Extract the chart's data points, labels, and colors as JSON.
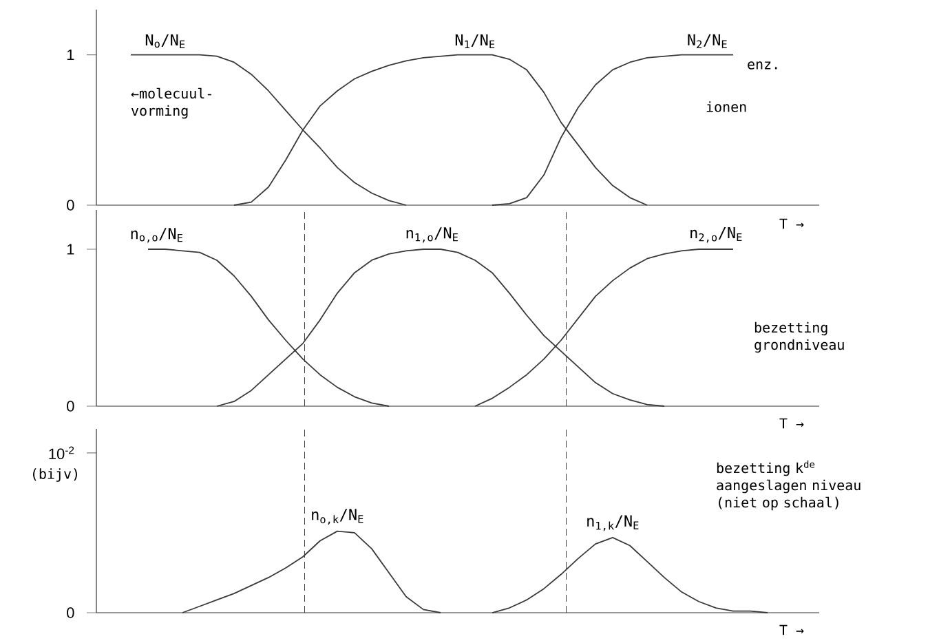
{
  "chart_data": [
    {
      "type": "line",
      "categories": [
        null,
        null,
        null,
        null,
        null,
        null,
        null,
        null,
        null,
        null,
        null,
        null,
        null,
        null,
        null,
        null,
        null,
        null,
        null,
        null,
        null,
        null,
        null,
        null,
        null,
        null,
        null,
        null,
        null,
        null,
        null,
        null,
        null,
        null,
        null,
        null,
        null,
        null,
        null,
        null,
        null,
        null,
        null
      ],
      "ylim": [
        0,
        1.3
      ],
      "yticks": [
        0,
        1
      ],
      "tick_labels": "y",
      "xlabel": "T →",
      "series": [
        {
          "name": "N$_{o}$/N$_{E}$",
          "color": "#3a3a3a",
          "values": [
            null,
            null,
            1,
            1,
            1,
            1,
            1,
            0.99,
            0.95,
            0.87,
            0.76,
            0.63,
            0.5,
            0.38,
            0.25,
            0.15,
            0.08,
            0.03,
            0,
            null,
            null,
            null,
            null,
            null,
            null,
            null,
            null,
            null,
            null,
            null,
            null,
            null,
            null,
            null,
            null,
            null,
            null,
            null,
            null,
            null,
            null,
            null,
            null
          ]
        },
        {
          "name": "N$_{1}$/N$_{E}$",
          "color": "#3a3a3a",
          "values": [
            null,
            null,
            null,
            null,
            null,
            null,
            null,
            null,
            0,
            0.02,
            0.12,
            0.3,
            0.5,
            0.66,
            0.76,
            0.84,
            0.89,
            0.93,
            0.96,
            0.98,
            0.99,
            1,
            1,
            1,
            0.97,
            0.9,
            0.75,
            0.55,
            0.4,
            0.25,
            0.13,
            0.05,
            0,
            null,
            null,
            null,
            null,
            null,
            null,
            null,
            null,
            null,
            null
          ]
        },
        {
          "name": "N$_{2}$/N$_{E}$",
          "color": "#3a3a3a",
          "values": [
            null,
            null,
            null,
            null,
            null,
            null,
            null,
            null,
            null,
            null,
            null,
            null,
            null,
            null,
            null,
            null,
            null,
            null,
            null,
            null,
            null,
            null,
            null,
            0,
            0.01,
            0.05,
            0.2,
            0.45,
            0.65,
            0.8,
            0.9,
            0.95,
            0.98,
            0.99,
            1,
            1,
            1,
            1,
            null,
            null,
            null,
            null,
            null
          ]
        }
      ],
      "annotations": [
        "enz.",
        "←molecuul-vorming",
        "ionen"
      ]
    },
    {
      "type": "line",
      "categories": [
        null,
        null,
        null,
        null,
        null,
        null,
        null,
        null,
        null,
        null,
        null,
        null,
        null,
        null,
        null,
        null,
        null,
        null,
        null,
        null,
        null,
        null,
        null,
        null,
        null,
        null,
        null,
        null,
        null,
        null,
        null,
        null,
        null,
        null,
        null,
        null,
        null,
        null,
        null,
        null,
        null,
        null,
        null
      ],
      "ylim": [
        0,
        1.25
      ],
      "yticks": [
        0,
        1
      ],
      "tick_labels": "y",
      "xlabel": "T →",
      "series": [
        {
          "name": "n$_{o,o}$/N$_{E}$",
          "color": "#3a3a3a",
          "values": [
            null,
            null,
            null,
            1,
            1,
            0.99,
            0.98,
            0.93,
            0.83,
            0.7,
            0.55,
            0.42,
            0.3,
            0.2,
            0.12,
            0.06,
            0.02,
            0,
            null,
            null,
            null,
            null,
            null,
            null,
            null,
            null,
            null,
            null,
            null,
            null,
            null,
            null,
            null,
            null,
            null,
            null,
            null,
            null,
            null,
            null,
            null,
            null,
            null
          ]
        },
        {
          "name": "n$_{1,o}$/N$_{E}$",
          "color": "#3a3a3a",
          "values": [
            null,
            null,
            null,
            null,
            null,
            null,
            null,
            0,
            0.03,
            0.1,
            0.2,
            0.3,
            0.4,
            0.55,
            0.72,
            0.85,
            0.93,
            0.97,
            0.99,
            1,
            1,
            0.98,
            0.93,
            0.85,
            0.72,
            0.58,
            0.45,
            0.35,
            0.25,
            0.15,
            0.08,
            0.04,
            0.01,
            0,
            null,
            null,
            null,
            null,
            null,
            null,
            null,
            null,
            null
          ]
        },
        {
          "name": "n$_{2,o}$/N$_{E}$",
          "color": "#3a3a3a",
          "values": [
            null,
            null,
            null,
            null,
            null,
            null,
            null,
            null,
            null,
            null,
            null,
            null,
            null,
            null,
            null,
            null,
            null,
            null,
            null,
            null,
            null,
            null,
            0,
            0.05,
            0.12,
            0.2,
            0.3,
            0.42,
            0.56,
            0.7,
            0.8,
            0.88,
            0.94,
            0.97,
            0.99,
            1,
            1,
            1,
            null,
            null,
            null,
            null,
            null
          ]
        }
      ],
      "annotations": [
        "bezetting grondniveau"
      ]
    },
    {
      "type": "line",
      "categories": [
        null,
        null,
        null,
        null,
        null,
        null,
        null,
        null,
        null,
        null,
        null,
        null,
        null,
        null,
        null,
        null,
        null,
        null,
        null,
        null,
        null,
        null,
        null,
        null,
        null,
        null,
        null,
        null,
        null,
        null,
        null,
        null,
        null,
        null,
        null,
        null,
        null,
        null,
        null,
        null,
        null,
        null,
        null
      ],
      "ylim": [
        0,
        0.0115
      ],
      "yticks": [
        0,
        {
          "value": 0.01,
          "label": "10$^{-2}$"
        }
      ],
      "tick_labels": "y",
      "xlabel": "T →",
      "ylabel": "(bijv)",
      "series": [
        {
          "name": "n$_{o,k}$/N$_{E}$",
          "color": "#3a3a3a",
          "values": [
            null,
            null,
            null,
            null,
            null,
            0,
            0.0004,
            0.0008,
            0.0012,
            0.0017,
            0.0022,
            0.0028,
            0.0035,
            0.0045,
            0.0051,
            0.005,
            0.004,
            0.0025,
            0.001,
            0.0002,
            0,
            null,
            null,
            null,
            null,
            null,
            null,
            null,
            null,
            null,
            null,
            null,
            null,
            null,
            null,
            null,
            null,
            null,
            null,
            null,
            null,
            null,
            null
          ]
        },
        {
          "name": "n$_{1,k}$/N$_{E}$",
          "color": "#3a3a3a",
          "values": [
            null,
            null,
            null,
            null,
            null,
            null,
            null,
            null,
            null,
            null,
            null,
            null,
            null,
            null,
            null,
            null,
            null,
            null,
            null,
            null,
            null,
            null,
            null,
            0,
            0.0003,
            0.0008,
            0.0015,
            0.0024,
            0.0034,
            0.0043,
            0.0047,
            0.0042,
            0.0032,
            0.0022,
            0.0013,
            0.0007,
            0.0003,
            0.0001,
            0.0001,
            0,
            null,
            null,
            null
          ]
        }
      ],
      "annotations": [
        "bezetting k$^{de}$ aangeslagen niveau (niet op schaal)"
      ]
    }
  ]
}
